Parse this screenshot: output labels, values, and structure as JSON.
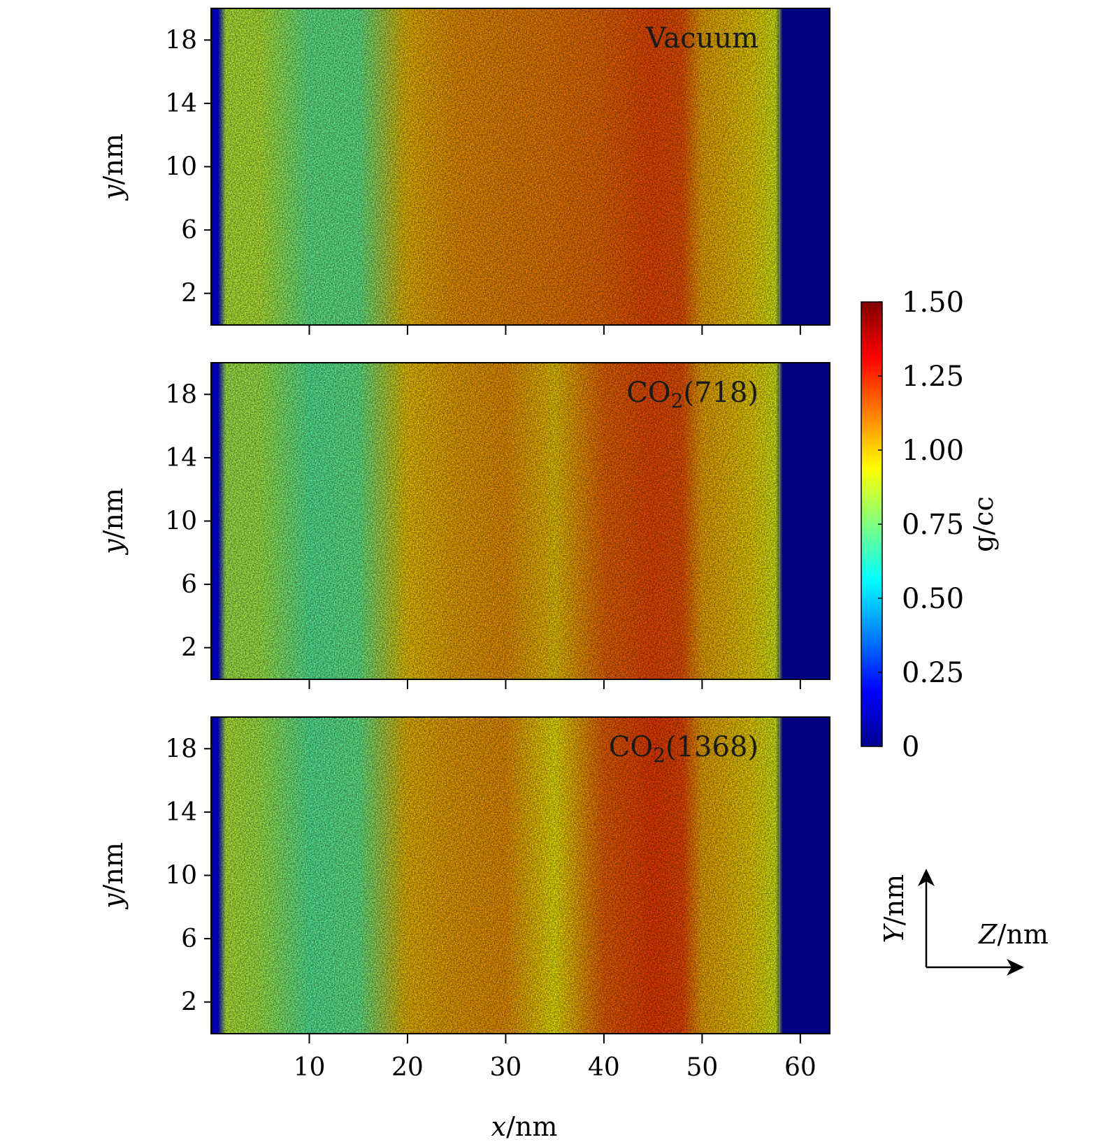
{
  "chart_data": {
    "type": "heatmap",
    "colormap": "jet",
    "x": {
      "label_var": "x",
      "label_unit": "/nm",
      "range": [
        0,
        63
      ],
      "ticks": [
        10,
        20,
        30,
        40,
        50,
        60
      ],
      "tick_labels": [
        "10",
        "20",
        "30",
        "40",
        "50",
        "60"
      ]
    },
    "y": {
      "label_var": "y",
      "label_unit": "/nm",
      "range": [
        0,
        20
      ],
      "ticks": [
        2,
        6,
        10,
        14,
        18
      ],
      "tick_labels": [
        "2",
        "6",
        "10",
        "14",
        "18"
      ]
    },
    "colorbar": {
      "label": "g/cc",
      "range": [
        0,
        1.5
      ],
      "ticks": [
        0,
        0.25,
        0.5,
        0.75,
        1.0,
        1.25,
        1.5
      ],
      "tick_labels": [
        "0",
        "0.25",
        "0.50",
        "0.75",
        "1.00",
        "1.25",
        "1.50"
      ]
    },
    "panels": [
      {
        "label": "Vacuum",
        "density_profile": {
          "x": [
            0,
            0.7,
            1.5,
            5,
            10,
            15,
            20,
            25,
            30,
            35,
            40,
            45,
            48,
            50,
            55,
            57.5,
            58.2,
            63
          ],
          "density": [
            0,
            0.15,
            0.85,
            0.85,
            0.72,
            0.72,
            1.02,
            1.08,
            1.1,
            1.12,
            1.15,
            1.2,
            1.18,
            1.05,
            0.98,
            0.9,
            0,
            0
          ]
        }
      },
      {
        "label_main": "CO",
        "label_sub": "2",
        "label_tail": "(718)",
        "density_profile": {
          "x": [
            0,
            0.7,
            1.5,
            5,
            10,
            15,
            20,
            25,
            30,
            35,
            40,
            45,
            48,
            50,
            55,
            57.5,
            58.2,
            63
          ],
          "density": [
            0,
            0.15,
            0.82,
            0.82,
            0.7,
            0.72,
            1.0,
            1.05,
            1.08,
            1.0,
            1.15,
            1.2,
            1.18,
            1.05,
            0.98,
            0.9,
            0,
            0
          ]
        }
      },
      {
        "label_main": "CO",
        "label_sub": "2",
        "label_tail": "(1368)",
        "density_profile": {
          "x": [
            0,
            0.7,
            1.5,
            5,
            10,
            15,
            20,
            25,
            30,
            35,
            40,
            45,
            48,
            50,
            55,
            57.5,
            58.2,
            63
          ],
          "density": [
            0,
            0.15,
            0.85,
            0.82,
            0.7,
            0.72,
            1.02,
            1.06,
            1.08,
            0.95,
            1.16,
            1.22,
            1.2,
            1.05,
            0.98,
            0.9,
            0,
            0
          ]
        }
      }
    ]
  },
  "axes_glyph": {
    "y_var": "Y",
    "z_var": "Z",
    "unit": "/nm"
  }
}
